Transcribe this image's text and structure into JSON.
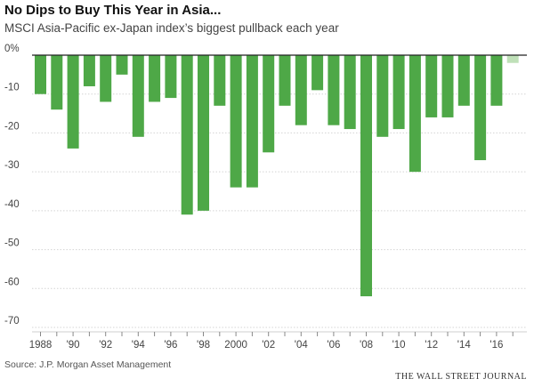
{
  "chart_data": {
    "type": "bar",
    "title": "No Dips to Buy This Year in Asia...",
    "subtitle": "MSCI Asia-Pacific ex-Japan index’s biggest pullback each year",
    "source": "Source: J.P. Morgan Asset Management",
    "brand": "THE WALL STREET JOURNAL",
    "x": [
      1988,
      1989,
      1990,
      1991,
      1992,
      1993,
      1994,
      1995,
      1996,
      1997,
      1998,
      1999,
      2000,
      2001,
      2002,
      2003,
      2004,
      2005,
      2006,
      2007,
      2008,
      2009,
      2010,
      2011,
      2012,
      2013,
      2014,
      2015,
      2016,
      2017
    ],
    "values": [
      -10,
      -14,
      -24,
      -8,
      -12,
      -5,
      -21,
      -12,
      -11,
      -41,
      -40,
      -13,
      -34,
      -34,
      -25,
      -13,
      -18,
      -9,
      -18,
      -19,
      -62,
      -21,
      -19,
      -30,
      -16,
      -16,
      -13,
      -27,
      -13,
      -2
    ],
    "x_tick_labels": [
      "1988",
      "'90",
      "'92",
      "'94",
      "'96",
      "'98",
      "2000",
      "'02",
      "'04",
      "'06",
      "'08",
      "'10",
      "'12",
      "'14",
      "'16"
    ],
    "x_tick_years": [
      1988,
      1990,
      1992,
      1994,
      1996,
      1998,
      2000,
      2002,
      2004,
      2006,
      2008,
      2010,
      2012,
      2014,
      2016
    ],
    "y_ticks": [
      0,
      -10,
      -20,
      -30,
      -40,
      -50,
      -60,
      -70
    ],
    "y_tick_labels": [
      "0%",
      "-10",
      "-20",
      "-30",
      "-40",
      "-50",
      "-60",
      "-70"
    ],
    "ylim": [
      -70,
      0
    ],
    "grid": true,
    "colors": {
      "bar": "#4ea847",
      "bar_current": "#bfe0b8",
      "grid": "#d4d4d4",
      "axis": "#222222"
    }
  }
}
